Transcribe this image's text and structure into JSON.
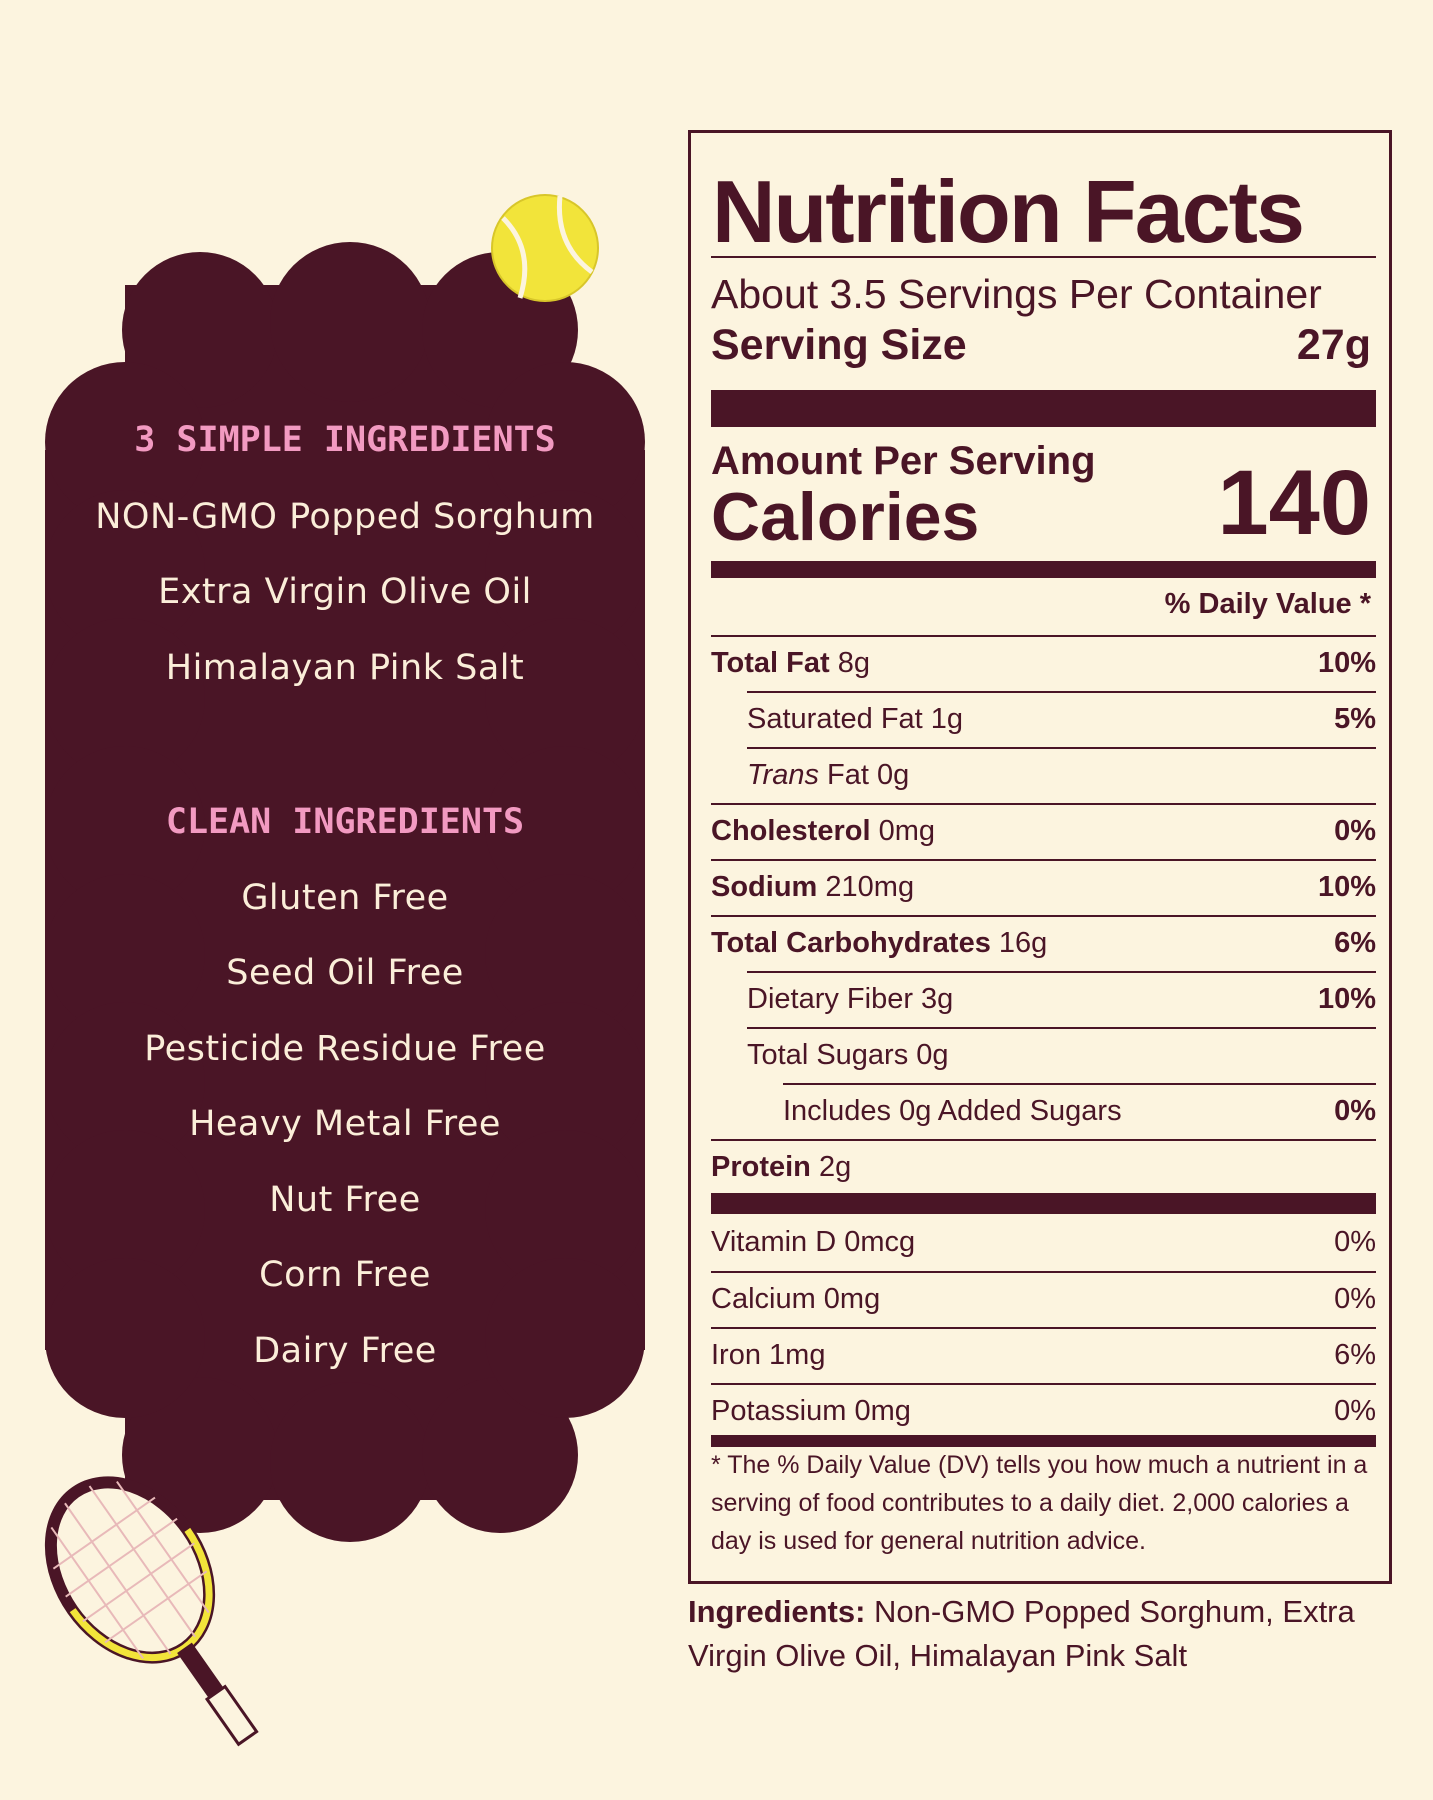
{
  "left_panel": {
    "heading_simple": "3 SIMPLE INGREDIENTS",
    "simple_items": [
      "NON-GMO Popped Sorghum",
      "Extra Virgin Olive Oil",
      "Himalayan Pink Salt"
    ],
    "heading_clean": "CLEAN INGREDIENTS",
    "clean_items": [
      "Gluten Free",
      "Seed Oil Free",
      "Pesticide Residue Free",
      "Heavy Metal Free",
      "Nut Free",
      "Corn Free",
      "Dairy Free"
    ]
  },
  "nutrition": {
    "title": "Nutrition Facts",
    "servings_per_container": "About 3.5 Servings Per Container",
    "serving_size_label": "Serving Size",
    "serving_size_value": "27g",
    "amount_per_serving": "Amount Per Serving",
    "calories_label": "Calories",
    "calories_value": "140",
    "dv_header": "% Daily Value *",
    "rows": [
      {
        "bold": "Total Fat",
        "text": "8g",
        "pct": "10%"
      },
      {
        "bold": "",
        "text": "Saturated Fat 1g",
        "pct": "5%"
      },
      {
        "italic": "Trans",
        "text": "Fat 0g",
        "pct": ""
      },
      {
        "bold": "Cholesterol",
        "text": "0mg",
        "pct": "0%"
      },
      {
        "bold": "Sodium",
        "text": "210mg",
        "pct": "10%"
      },
      {
        "bold": "Total Carbohydrates",
        "text": "16g",
        "pct": "6%"
      },
      {
        "bold": "",
        "text": "Dietary Fiber 3g",
        "pct": "10%"
      },
      {
        "bold": "",
        "text": "Total Sugars 0g",
        "pct": ""
      },
      {
        "bold": "",
        "text": "Includes 0g Added Sugars",
        "pct": "0%"
      },
      {
        "bold": "Protein",
        "text": "2g",
        "pct": ""
      }
    ],
    "vitamins": [
      {
        "text": "Vitamin D 0mcg",
        "pct": "0%"
      },
      {
        "text": "Calcium 0mg",
        "pct": "0%"
      },
      {
        "text": "Iron 1mg",
        "pct": "6%"
      },
      {
        "text": "Potassium 0mg",
        "pct": "0%"
      }
    ],
    "footnote": "* The % Daily Value (DV) tells you how much a nutrient in a serving of food contributes to a daily diet. 2,000 calories a day is used for general nutrition advice."
  },
  "ingredients": {
    "label": "Ingredients:",
    "text": "Non-GMO Popped Sorghum, Extra Virgin Olive Oil, Himalayan Pink Salt"
  },
  "colors": {
    "background": "#fcf4df",
    "maroon": "#4a1526",
    "pink": "#f29ac1",
    "tennis_ball": "#f2e43a"
  },
  "icons": [
    "tennis-ball-icon",
    "tennis-racket-icon"
  ]
}
